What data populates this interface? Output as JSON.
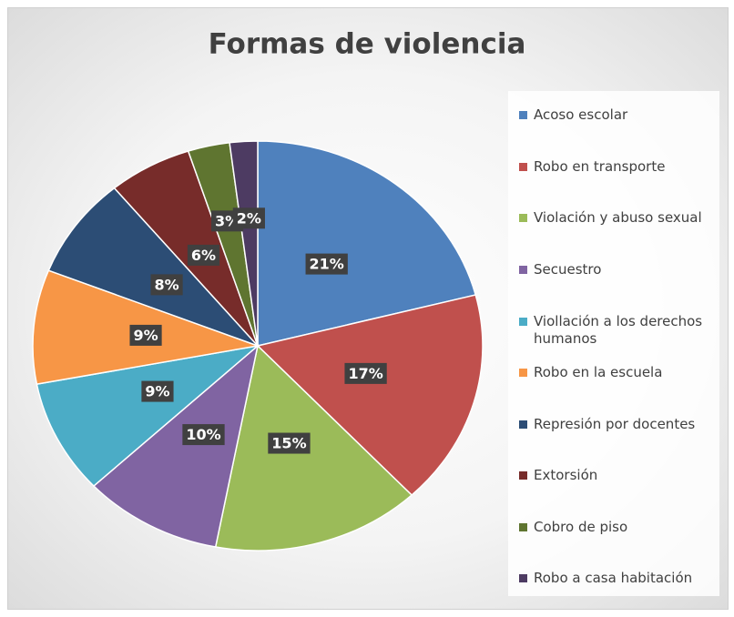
{
  "chart_data": {
    "type": "pie",
    "title": "Formas de violencia",
    "categories": [
      "Acoso escolar",
      "Robo en transporte",
      "Violación y abuso sexual",
      "Secuestro",
      "Viollación a los derechos humanos",
      "Robo en la escuela",
      "Represión por docentes",
      "Extorsión",
      "Cobro de piso",
      "Robo a casa habitación"
    ],
    "values": [
      21,
      17,
      15,
      10,
      9,
      9,
      8,
      6,
      3,
      2
    ],
    "value_labels": [
      "21%",
      "17%",
      "15%",
      "10%",
      "9%",
      "9%",
      "8%",
      "6%",
      "3%",
      "2%"
    ],
    "colors": [
      "#4f81bd",
      "#c0504d",
      "#9bbb59",
      "#8064a2",
      "#4bacc6",
      "#f79646",
      "#2c4d75",
      "#772c2a",
      "#5f7530",
      "#4d3b62"
    ],
    "legend": "right"
  }
}
